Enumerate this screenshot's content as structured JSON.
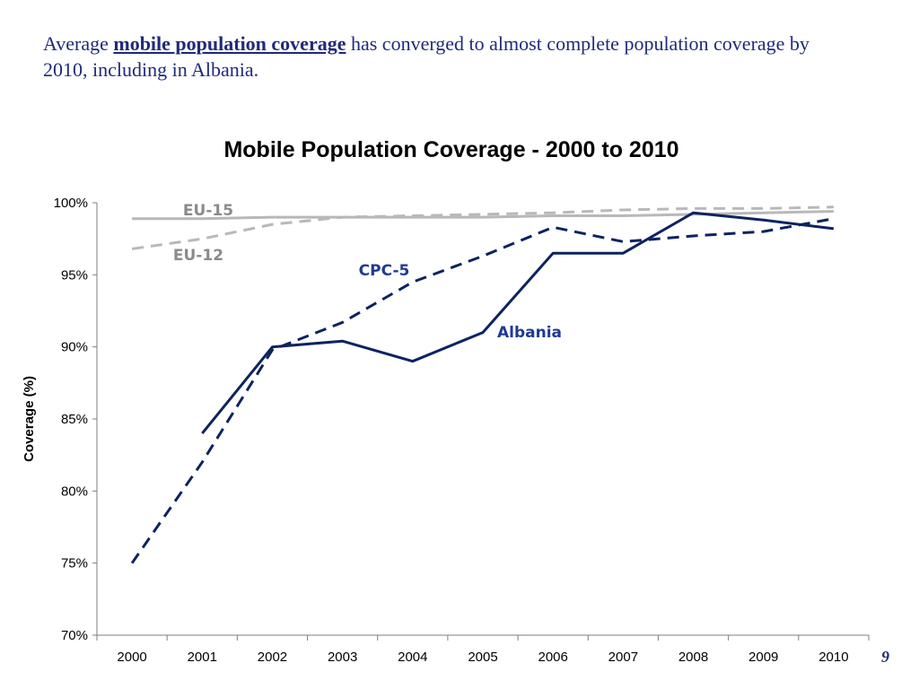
{
  "slide": {
    "headline_pre": "Average",
    "headline_emphasis": "mobile population coverage",
    "headline_post": "has converged to almost complete population coverage by 2010, including in Albania.",
    "page_number": "9"
  },
  "chart_data": {
    "type": "line",
    "title": "Mobile Population Coverage - 2000 to 2010",
    "xlabel": "",
    "ylabel": "Coverage (%)",
    "categories": [
      "2000",
      "2001",
      "2002",
      "2003",
      "2004",
      "2005",
      "2006",
      "2007",
      "2008",
      "2009",
      "2010"
    ],
    "ylim": [
      70,
      100
    ],
    "yticks": [
      70,
      75,
      80,
      85,
      90,
      95,
      100
    ],
    "ytick_labels": [
      "70%",
      "75%",
      "80%",
      "85%",
      "90%",
      "95%",
      "100%"
    ],
    "grid": false,
    "series": [
      {
        "name": "EU-15",
        "style": "solid",
        "color": "#b8b8b8",
        "values": [
          98.9,
          98.9,
          99.0,
          99.0,
          99.0,
          99.0,
          99.1,
          99.1,
          99.2,
          99.3,
          99.4
        ]
      },
      {
        "name": "EU-12",
        "style": "dashed",
        "color": "#b8b8b8",
        "values": [
          96.8,
          97.5,
          98.5,
          99.0,
          99.1,
          99.2,
          99.3,
          99.5,
          99.6,
          99.6,
          99.7
        ]
      },
      {
        "name": "CPC-5",
        "style": "dashed",
        "color": "#0d2360",
        "values": [
          75.0,
          82.0,
          89.8,
          91.7,
          94.5,
          96.3,
          98.3,
          97.3,
          97.7,
          98.0,
          98.9
        ]
      },
      {
        "name": "Albania",
        "style": "solid",
        "color": "#0d2360",
        "values": [
          null,
          84.0,
          90.0,
          90.4,
          89.0,
          91.0,
          96.5,
          96.5,
          99.3,
          98.8,
          98.2
        ]
      }
    ],
    "annotations": [
      {
        "text": "EU-15",
        "color": "#8a8a8a"
      },
      {
        "text": "EU-12",
        "color": "#8a8a8a"
      },
      {
        "text": "CPC-5",
        "color": "#1f3a93"
      },
      {
        "text": "Albania",
        "color": "#1f3a93"
      }
    ]
  }
}
